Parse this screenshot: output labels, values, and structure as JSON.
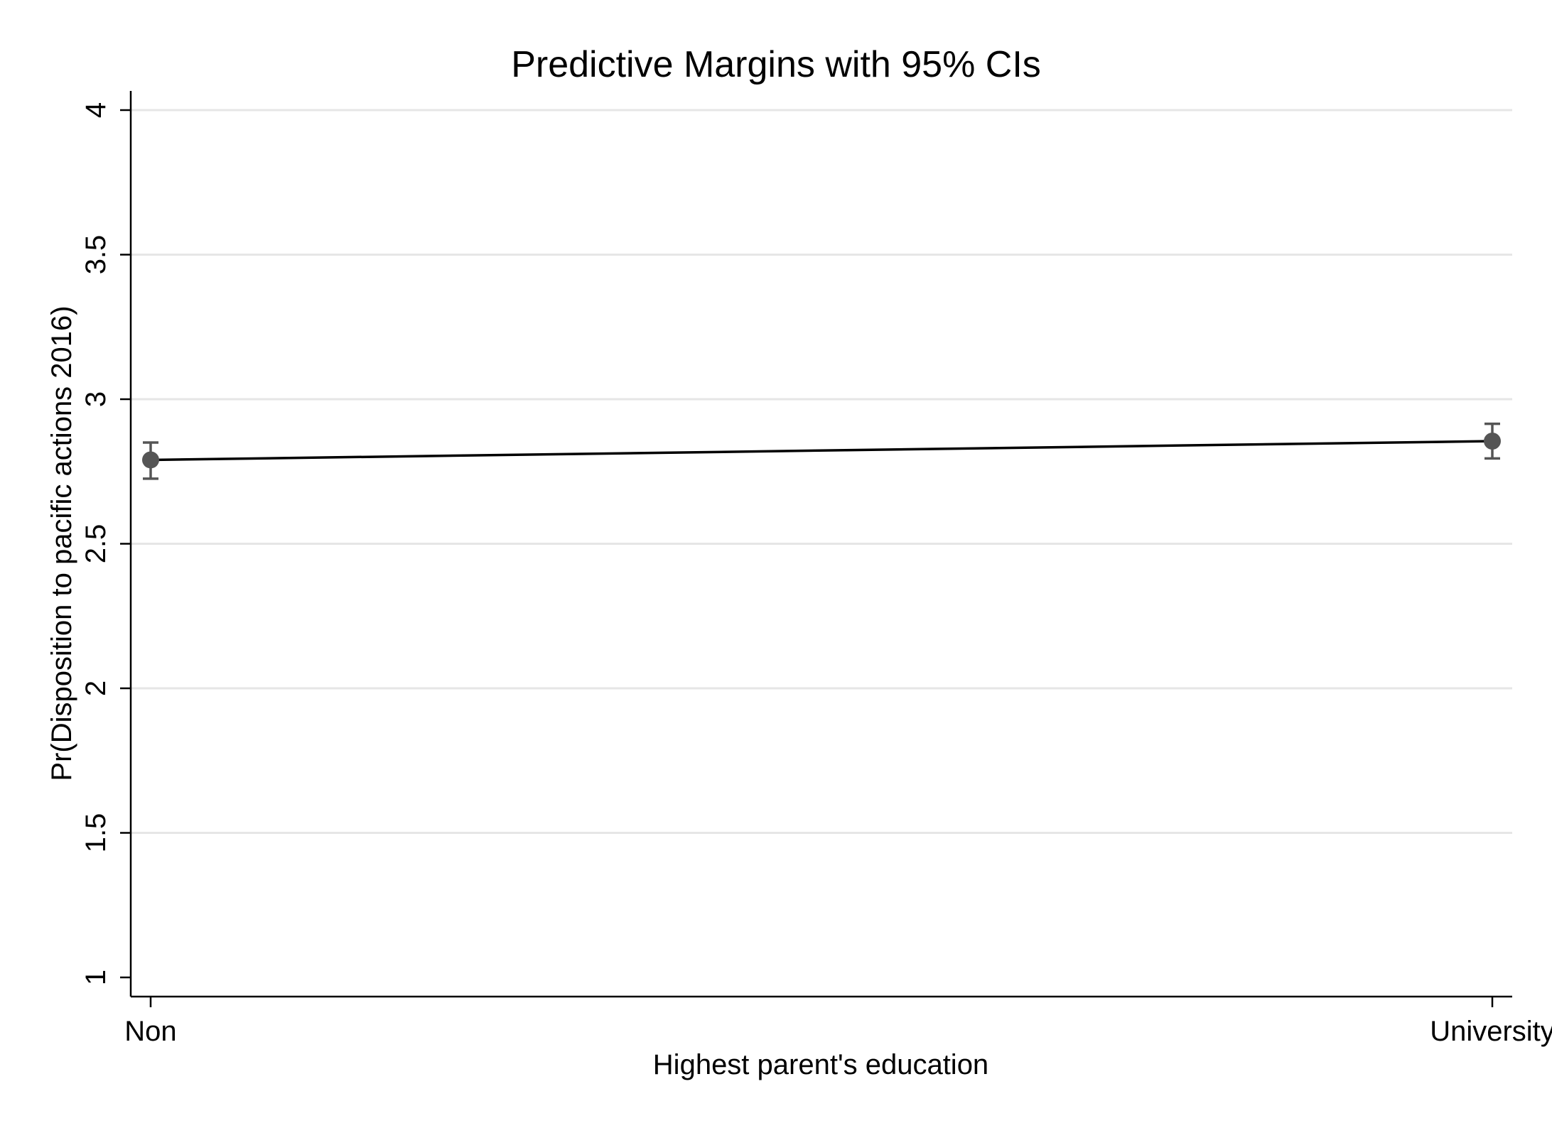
{
  "chart_data": {
    "type": "line",
    "title": "Predictive Margins with 95% CIs",
    "xlabel": "Highest parent's education",
    "ylabel": "Pr(Disposition to pacific actions 2016)",
    "categories": [
      "Non",
      "University"
    ],
    "series": [
      {
        "values": [
          2.79,
          2.855
        ],
        "ci_lower": [
          2.725,
          2.795
        ],
        "ci_upper": [
          2.85,
          2.915
        ]
      }
    ],
    "ylim": [
      1,
      4
    ],
    "yticks": [
      1,
      1.5,
      2,
      2.5,
      3,
      3.5,
      4
    ],
    "ytick_labels": [
      "1",
      "1.5",
      "2",
      "2.5",
      "3",
      "3.5",
      "4"
    ],
    "grid": true,
    "colors": {
      "line": "#000000",
      "marker": "#555555",
      "grid": "#e6e6e6"
    }
  }
}
